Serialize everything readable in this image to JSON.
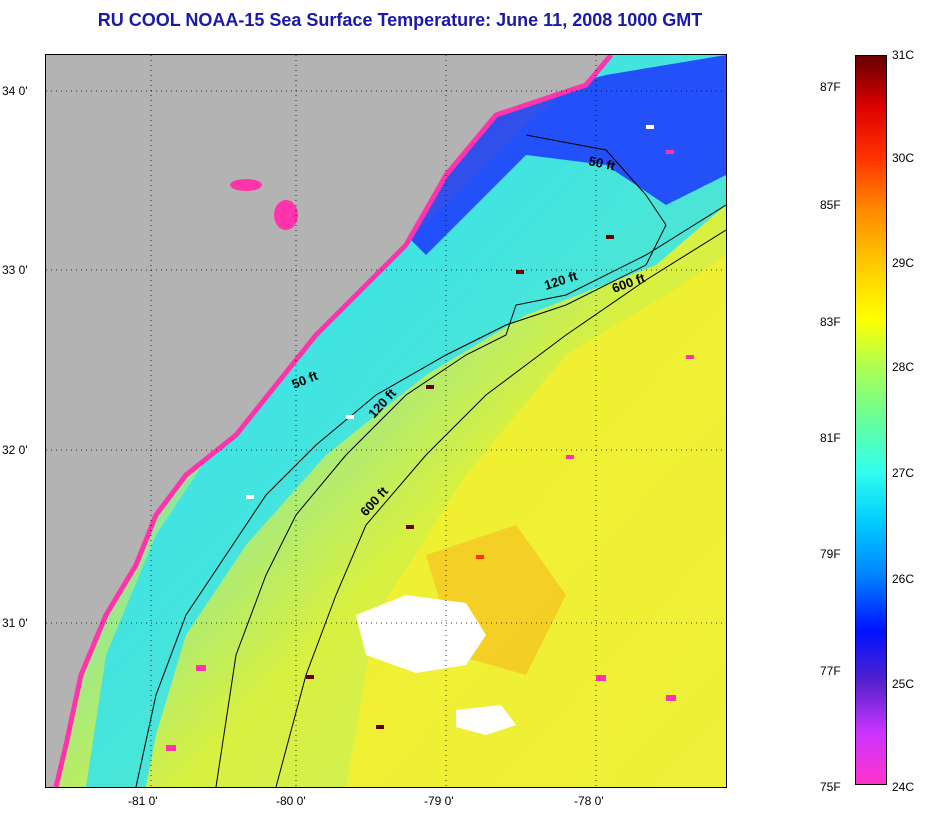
{
  "title": "RU COOL  NOAA-15  Sea Surface Temperature:  June 11, 2008 1000 GMT",
  "map": {
    "latitude_labels": [
      "34 0'",
      "33 0'",
      "32 0'",
      "31 0'"
    ],
    "longitude_labels": [
      "-81 0'",
      "-80 0'",
      "-79 0'",
      "-78 0'"
    ],
    "contour_labels": [
      "50 ft",
      "120 ft",
      "600 ft",
      "50 ft",
      "120 ft",
      "600 ft"
    ],
    "colors": {
      "land": "#b3b3b3",
      "cloud": "#ffffff",
      "cold": "#ff33aa",
      "deep_blue": "#1a2bff",
      "cyan": "#33e6f2",
      "green": "#88f07a",
      "yellow": "#f5f030",
      "orange": "#f5c020"
    }
  },
  "colorbar": {
    "fahrenheit_labels": [
      "87F",
      "85F",
      "83F",
      "81F",
      "79F",
      "77F",
      "75F"
    ],
    "celsius_labels": [
      "31C",
      "30C",
      "29C",
      "28C",
      "27C",
      "26C",
      "25C",
      "24C"
    ],
    "colors": [
      "#ff33cc",
      "#cc33ff",
      "#5522cc",
      "#0011ff",
      "#0088ff",
      "#00ccff",
      "#33ffee",
      "#66ff99",
      "#aaff55",
      "#ffff00",
      "#ffcc00",
      "#ff8800",
      "#ff3300",
      "#dd0000",
      "#660000"
    ]
  }
}
